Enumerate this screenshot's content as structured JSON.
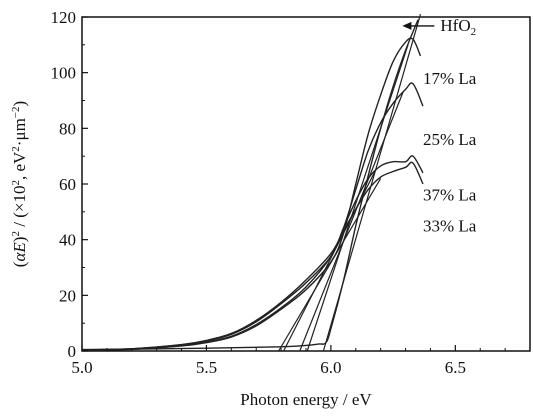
{
  "chart_data": {
    "type": "line",
    "title": "",
    "xlabel": "Photon energy / eV",
    "ylabel_parts": {
      "open": "(",
      "alpha": "α",
      "E": "E",
      "close": ")",
      "sq": "2",
      "mid": " / (×10",
      "mid_exp": "2",
      "mid2": ", eV",
      "mid2_exp": "2",
      "mid3": "·μm",
      "mid3_exp": "−2",
      "end": ")"
    },
    "xlim": [
      5.0,
      6.8
    ],
    "ylim": [
      0,
      120
    ],
    "xticks": [
      5.0,
      5.5,
      6.0,
      6.5
    ],
    "xtick_labels": [
      "5.0",
      "5.5",
      "6.0",
      "6.5"
    ],
    "yticks": [
      0,
      20,
      40,
      60,
      80,
      100,
      120
    ],
    "ytick_labels": [
      "0",
      "20",
      "40",
      "60",
      "80",
      "100",
      "120"
    ],
    "grid": false,
    "series": [
      {
        "name": "HfO2",
        "x": [
          5.0,
          5.5,
          5.8,
          5.9,
          5.95,
          5.98,
          6.0,
          6.05,
          6.1,
          6.15,
          6.2,
          6.25,
          6.3,
          6.35
        ],
        "y": [
          0.5,
          1.0,
          1.5,
          2.0,
          2.5,
          3.0,
          8.0,
          25.0,
          45.0,
          63.0,
          80.0,
          95.0,
          108.0,
          119.0
        ]
      },
      {
        "name": "17% La",
        "x": [
          5.0,
          5.2,
          5.4,
          5.5,
          5.6,
          5.7,
          5.8,
          5.9,
          6.0,
          6.05,
          6.1,
          6.15,
          6.2,
          6.25,
          6.3,
          6.33,
          6.36
        ],
        "y": [
          0.3,
          0.6,
          1.8,
          3.0,
          5.0,
          9.0,
          15.0,
          22.0,
          32.0,
          42.0,
          60.0,
          78.0,
          92.0,
          104.0,
          111.0,
          112.0,
          106.0
        ]
      },
      {
        "name": "25% La",
        "x": [
          5.0,
          5.2,
          5.4,
          5.5,
          5.6,
          5.7,
          5.8,
          5.9,
          6.0,
          6.05,
          6.1,
          6.15,
          6.2,
          6.25,
          6.3,
          6.33,
          6.37
        ],
        "y": [
          0.3,
          0.6,
          1.9,
          3.2,
          5.3,
          9.5,
          15.5,
          23.0,
          34.0,
          44.0,
          58.0,
          72.0,
          82.0,
          89.0,
          94.0,
          96.0,
          88.0
        ]
      },
      {
        "name": "37% La",
        "x": [
          5.0,
          5.2,
          5.4,
          5.5,
          5.6,
          5.7,
          5.8,
          5.9,
          6.0,
          6.05,
          6.1,
          6.15,
          6.2,
          6.25,
          6.3,
          6.33,
          6.37
        ],
        "y": [
          0.4,
          0.8,
          2.2,
          3.6,
          6.0,
          10.5,
          17.0,
          24.5,
          34.0,
          44.0,
          54.0,
          62.0,
          66.5,
          68.0,
          68.0,
          70.0,
          64.0
        ]
      },
      {
        "name": "33% La",
        "x": [
          5.0,
          5.2,
          5.4,
          5.5,
          5.6,
          5.7,
          5.8,
          5.9,
          6.0,
          6.05,
          6.1,
          6.15,
          6.2,
          6.25,
          6.3,
          6.33,
          6.37
        ],
        "y": [
          0.4,
          0.8,
          2.3,
          3.8,
          6.3,
          11.0,
          17.5,
          25.5,
          35.0,
          43.0,
          51.0,
          58.0,
          62.5,
          64.5,
          66.0,
          67.5,
          60.0
        ]
      }
    ],
    "fit_lines": [
      {
        "series": "HfO2",
        "x": [
          5.97,
          6.36
        ],
        "y": [
          0,
          121
        ]
      },
      {
        "series": "17% La",
        "x": [
          5.905,
          6.31
        ],
        "y": [
          0,
          110
        ]
      },
      {
        "series": "25% La",
        "x": [
          5.875,
          6.29
        ],
        "y": [
          0,
          93
        ]
      },
      {
        "series": "37% La",
        "x": [
          5.81,
          6.18
        ],
        "y": [
          0,
          65
        ]
      },
      {
        "series": "33% La",
        "x": [
          5.79,
          6.2
        ],
        "y": [
          0,
          62
        ]
      }
    ],
    "annotations": [
      {
        "key": "hfo2",
        "text": "HfO",
        "sub": "2",
        "x": 6.44,
        "y": 115,
        "arrow": true
      },
      {
        "key": "la17",
        "text": "17% La",
        "x": 6.37,
        "y": 96
      },
      {
        "key": "la25",
        "text": "25% La",
        "x": 6.37,
        "y": 74
      },
      {
        "key": "la37",
        "text": "37% La",
        "x": 6.37,
        "y": 54
      },
      {
        "key": "la33",
        "text": "33% La",
        "x": 6.37,
        "y": 43
      }
    ]
  }
}
